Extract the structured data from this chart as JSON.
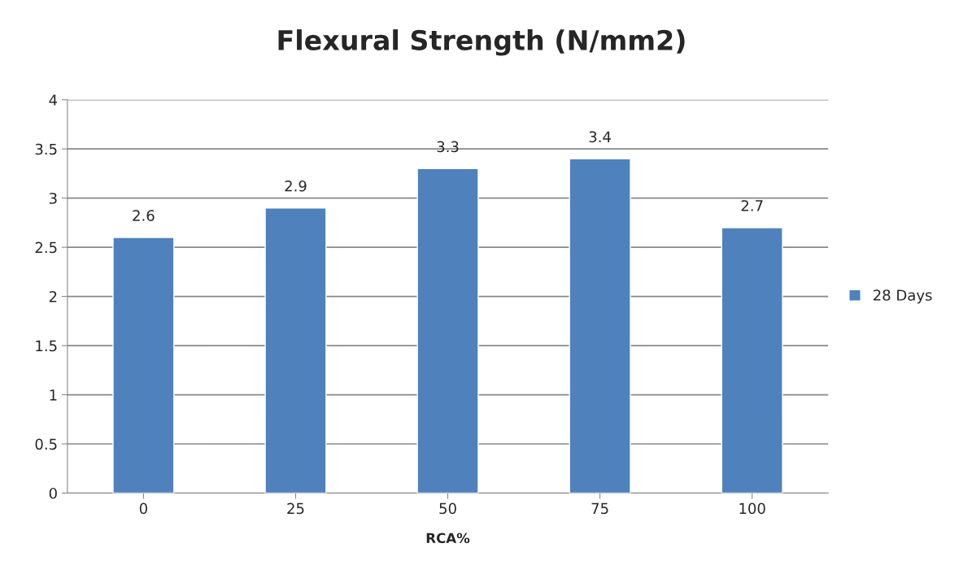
{
  "chart_data": {
    "type": "bar",
    "title": "Flexural Strength (N/mm2)",
    "xlabel": "RCA%",
    "categories": [
      "0",
      "25",
      "50",
      "75",
      "100"
    ],
    "series": [
      {
        "name": "28 Days",
        "color": "#4f81bd",
        "values": [
          2.6,
          2.9,
          3.3,
          3.4,
          2.7
        ]
      }
    ],
    "ylim": [
      0,
      4
    ],
    "yticks": [
      0,
      0.5,
      1,
      1.5,
      2,
      2.5,
      3,
      3.5,
      4
    ],
    "grid": "y",
    "legend": "right",
    "data_labels": true
  }
}
